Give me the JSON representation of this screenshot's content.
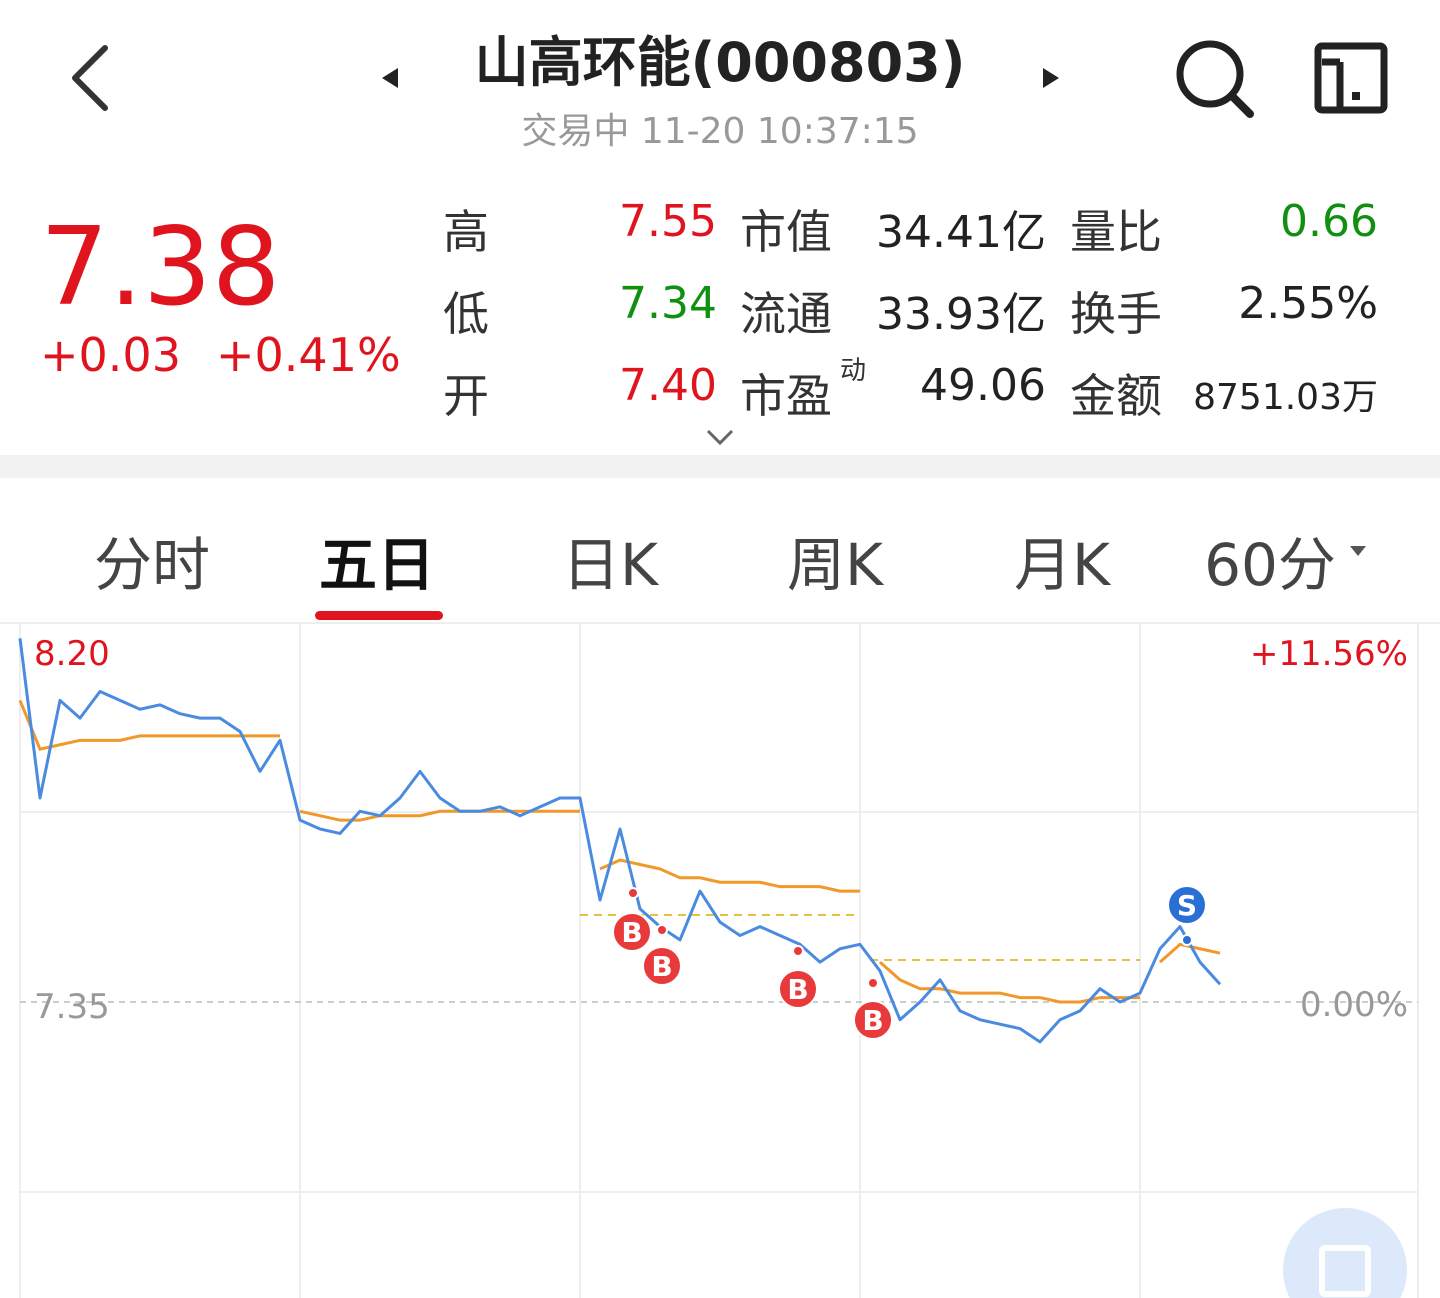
{
  "header": {
    "title": "山高环能(000803)",
    "status": "交易中 11-20 10:37:15"
  },
  "quote": {
    "price": "7.38",
    "change": "+0.03",
    "change_pct": "+0.41%",
    "rows": [
      [
        {
          "label": "高",
          "value": "7.55",
          "color": "#e0141e"
        },
        {
          "label": "市值",
          "value": "34.41亿",
          "color": "#222"
        },
        {
          "label": "量比",
          "value": "0.66",
          "color": "#109010"
        }
      ],
      [
        {
          "label": "低",
          "value": "7.34",
          "color": "#109010"
        },
        {
          "label": "流通",
          "value": "33.93亿",
          "color": "#222"
        },
        {
          "label": "换手",
          "value": "2.55%",
          "color": "#222"
        }
      ],
      [
        {
          "label": "开",
          "value": "7.40",
          "color": "#e0141e"
        },
        {
          "label": "市盈",
          "sup": "动",
          "value": "49.06",
          "color": "#222"
        },
        {
          "label": "金额",
          "value": "8751.03万",
          "color": "#222"
        }
      ]
    ]
  },
  "tabs": {
    "items": [
      "分时",
      "五日",
      "日K",
      "周K",
      "月K",
      "60分"
    ],
    "active": 1
  },
  "chart": {
    "yticks": [
      {
        "value": 8.2,
        "label": "8.20"
      },
      {
        "value": 7.35,
        "label": "7.35"
      }
    ],
    "pct_labels": [
      "+11.56%",
      "0.00%"
    ],
    "price": [
      8.17,
      7.81,
      8.03,
      7.99,
      8.05,
      8.03,
      8.01,
      8.02,
      8.0,
      7.99,
      7.99,
      7.96,
      7.87,
      7.94,
      7.76,
      7.74,
      7.73,
      7.78,
      7.77,
      7.81,
      7.87,
      7.81,
      7.78,
      7.78,
      7.79,
      7.77,
      7.79,
      7.81,
      7.81,
      7.58,
      7.74,
      7.56,
      7.52,
      7.49,
      7.6,
      7.53,
      7.5,
      7.52,
      7.5,
      7.48,
      7.44,
      7.47,
      7.48,
      7.42,
      7.31,
      7.35,
      7.4,
      7.33,
      7.31,
      7.3,
      7.29,
      7.26,
      7.31,
      7.33,
      7.38,
      7.35,
      7.37,
      7.47,
      7.52,
      7.44,
      7.39
    ],
    "average": [
      8.03,
      7.92,
      7.93,
      7.94,
      7.94,
      7.94,
      7.95,
      7.95,
      7.95,
      7.95,
      7.95,
      7.95,
      7.95,
      7.95,
      7.78,
      7.77,
      7.76,
      7.76,
      7.77,
      7.77,
      7.77,
      7.78,
      7.78,
      7.78,
      7.78,
      7.78,
      7.78,
      7.78,
      7.78,
      7.65,
      7.67,
      7.66,
      7.65,
      7.63,
      7.63,
      7.62,
      7.62,
      7.62,
      7.61,
      7.61,
      7.61,
      7.6,
      7.6,
      7.44,
      7.4,
      7.38,
      7.38,
      7.37,
      7.37,
      7.37,
      7.36,
      7.36,
      7.35,
      7.35,
      7.36,
      7.36,
      7.36,
      7.44,
      7.48,
      7.47,
      7.46
    ],
    "markers": [
      "B",
      "B",
      "B",
      "B",
      "S"
    ]
  }
}
